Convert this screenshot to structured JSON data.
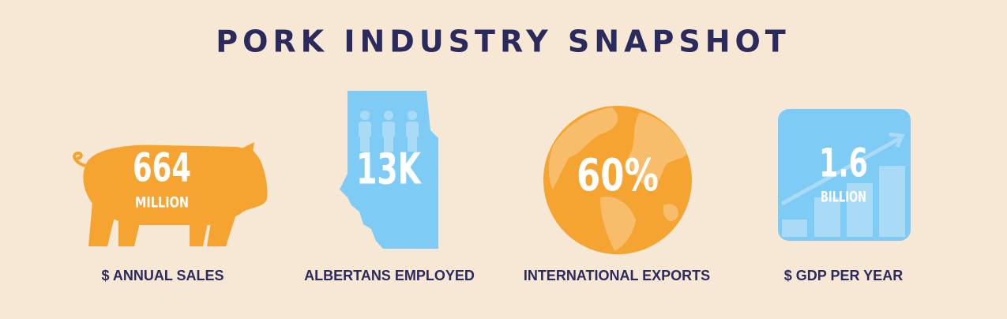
{
  "title": "PORK INDUSTRY SNAPSHOT",
  "stats": [
    {
      "value": "664",
      "unit": "MILLION",
      "caption": "$ ANNUAL SALES"
    },
    {
      "value": "13K",
      "caption": "ALBERTANS EMPLOYED"
    },
    {
      "value": "60%",
      "caption": "INTERNATIONAL EXPORTS"
    },
    {
      "value": "1.6",
      "unit": "BILLION",
      "caption": "$ GDP PER YEAR"
    }
  ]
}
